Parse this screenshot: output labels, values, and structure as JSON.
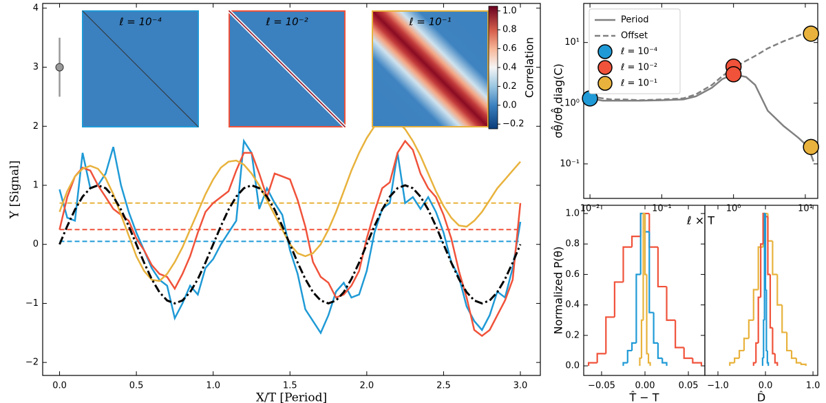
{
  "chart_data": [
    {
      "type": "line",
      "xlabel": "X/T [Period]",
      "ylabel": "Y [Signal]",
      "xlim": [
        -0.11,
        3.13
      ],
      "ylim": [
        -2.22,
        4.08
      ],
      "xticks": [
        {
          "value": 0,
          "label": "0.0"
        },
        0.5,
        {
          "value": 1,
          "label": "1.0"
        },
        1.5,
        {
          "value": 2,
          "label": "2.0"
        },
        2.5,
        {
          "value": 3,
          "label": "3.0"
        }
      ],
      "yticks": [
        {
          "value": -2,
          "label": "−2"
        },
        {
          "value": -1,
          "label": "−1"
        },
        0,
        1,
        2,
        3,
        4
      ],
      "x": [
        0,
        0.05,
        0.1,
        0.15,
        0.2,
        0.25,
        0.3,
        0.35,
        0.4,
        0.45,
        0.5,
        0.55,
        0.6,
        0.65,
        0.7,
        0.75,
        0.8,
        0.85,
        0.9,
        0.95,
        1,
        1.05,
        1.1,
        1.15,
        1.2,
        1.25,
        1.3,
        1.35,
        1.4,
        1.45,
        1.5,
        1.55,
        1.6,
        1.65,
        1.7,
        1.75,
        1.8,
        1.85,
        1.9,
        1.95,
        2,
        2.05,
        2.1,
        2.15,
        2.2,
        2.25,
        2.3,
        2.35,
        2.4,
        2.45,
        2.5,
        2.55,
        2.6,
        2.65,
        2.7,
        2.75,
        2.8,
        2.85,
        2.9,
        2.95,
        3
      ],
      "series": [
        {
          "color": "#1f9ad6",
          "style": "solid",
          "values": [
            0.93,
            0.45,
            0.4,
            1.55,
            0.95,
            1.0,
            1.2,
            1.65,
            1.0,
            0.55,
            0.2,
            -0.1,
            -0.4,
            -0.6,
            -0.7,
            -1.25,
            -1.0,
            -0.7,
            -0.85,
            -0.4,
            -0.25,
            0.0,
            0.2,
            0.4,
            1.75,
            1.55,
            0.6,
            0.95,
            0.7,
            0.5,
            -0.1,
            -0.5,
            -1.1,
            -1.3,
            -1.5,
            -1.2,
            -0.8,
            -0.65,
            -0.9,
            -0.85,
            -0.45,
            0.2,
            0.6,
            0.7,
            1.55,
            0.7,
            0.8,
            0.6,
            0.8,
            0.55,
            0.2,
            -0.3,
            -0.55,
            -1.05,
            -1.3,
            -1.45,
            -1.2,
            -0.8,
            -0.9,
            -0.4,
            0.38
          ]
        },
        {
          "color": "#f0523a",
          "style": "solid",
          "values": [
            0.25,
            0.8,
            1.15,
            1.3,
            1.25,
            1.0,
            0.8,
            0.6,
            0.5,
            0.4,
            0.1,
            -0.1,
            -0.35,
            -0.5,
            -0.55,
            -0.75,
            -0.5,
            -0.2,
            0.2,
            0.55,
            0.7,
            0.8,
            0.9,
            1.25,
            1.55,
            1.55,
            1.2,
            0.8,
            1.2,
            1.15,
            1.1,
            0.75,
            0.3,
            -0.3,
            -0.55,
            -0.65,
            -0.9,
            -0.85,
            -0.7,
            -0.45,
            0.1,
            0.55,
            0.95,
            1.05,
            1.55,
            1.75,
            1.6,
            1.2,
            0.95,
            0.8,
            0.5,
            0.1,
            -0.45,
            -0.9,
            -1.45,
            -1.55,
            -1.45,
            -1.2,
            -0.95,
            -0.6,
            0.7
          ]
        },
        {
          "color": "#e8b23c",
          "style": "solid",
          "values": [
            0.55,
            0.9,
            1.15,
            1.28,
            1.33,
            1.28,
            1.12,
            0.85,
            0.5,
            0.15,
            -0.2,
            -0.45,
            -0.6,
            -0.62,
            -0.5,
            -0.3,
            -0.05,
            0.25,
            0.55,
            0.85,
            1.1,
            1.3,
            1.4,
            1.42,
            1.35,
            1.2,
            1.0,
            0.75,
            0.5,
            0.25,
            0.0,
            -0.15,
            -0.2,
            -0.15,
            0.0,
            0.25,
            0.55,
            0.9,
            1.25,
            1.55,
            1.8,
            2.0,
            2.1,
            2.13,
            2.08,
            1.95,
            1.75,
            1.5,
            1.2,
            0.9,
            0.65,
            0.45,
            0.32,
            0.3,
            0.4,
            0.55,
            0.75,
            0.95,
            1.1,
            1.25,
            1.4
          ]
        },
        {
          "color": "#000000",
          "style": "dashdot",
          "values": [
            0,
            0.309,
            0.588,
            0.809,
            0.951,
            1,
            0.951,
            0.809,
            0.588,
            0.309,
            0,
            -0.309,
            -0.588,
            -0.809,
            -0.951,
            -1,
            -0.951,
            -0.809,
            -0.588,
            -0.309,
            0,
            0.309,
            0.588,
            0.809,
            0.951,
            1,
            0.951,
            0.809,
            0.588,
            0.309,
            0,
            -0.309,
            -0.588,
            -0.809,
            -0.951,
            -1,
            -0.951,
            -0.809,
            -0.588,
            -0.309,
            0,
            0.309,
            0.588,
            0.809,
            0.951,
            1,
            0.951,
            0.809,
            0.588,
            0.309,
            0,
            -0.309,
            -0.588,
            -0.809,
            -0.951,
            -1,
            -0.951,
            -0.809,
            -0.588,
            -0.309,
            0
          ]
        }
      ],
      "hlines": [
        {
          "value": 0.05,
          "color": "#1f9ad6"
        },
        {
          "value": 0.25,
          "color": "#f0523a"
        },
        {
          "value": 0.7,
          "color": "#e8b23c"
        }
      ],
      "errorbar": {
        "x": 0,
        "y": 3,
        "err": 0.5,
        "color": "#999999"
      },
      "insets": [
        {
          "title": "ℓ = 10⁻⁴",
          "color": "#1f9ad6"
        },
        {
          "title": "ℓ = 10⁻²",
          "color": "#f0523a"
        },
        {
          "title": "ℓ = 10⁻¹",
          "color": "#e8b23c"
        }
      ],
      "colorbar": {
        "label": "Correlation",
        "lim": [
          -0.25,
          1.05
        ],
        "ticks": [
          {
            "value": -0.2,
            "label": "−0.2"
          },
          {
            "value": 0,
            "label": "0.0"
          },
          0.2,
          0.4,
          0.6,
          0.8,
          {
            "value": 1,
            "label": "1.0"
          }
        ]
      }
    },
    {
      "type": "line",
      "xlog": true,
      "ylog": true,
      "xlabel": "ℓ × T",
      "ylabel": "σθ̂/σθ̂,diag(C)",
      "legend": "upper left",
      "xlim": [
        0.00818,
        14.9
      ],
      "ylim": [
        0.027,
        44
      ],
      "xticks": [
        {
          "value": 0.01,
          "label": "10⁻²"
        },
        {
          "value": 0.1,
          "label": "10⁻¹"
        },
        {
          "value": 1,
          "label": "10⁰"
        },
        {
          "value": 10,
          "label": "10¹"
        }
      ],
      "yticks": [
        {
          "value": 0.1,
          "label": "10⁻¹"
        },
        {
          "value": 1,
          "label": "10⁰"
        },
        {
          "value": 10,
          "label": "10¹"
        }
      ],
      "x": [
        0.01,
        0.015,
        0.02,
        0.03,
        0.05,
        0.1,
        0.2,
        0.3,
        0.5,
        0.7,
        1,
        1.5,
        2,
        3,
        5,
        8,
        11,
        13
      ],
      "series": [
        {
          "name": "Period",
          "color": "#808080",
          "style": "solid",
          "values": [
            1.2,
            1.1,
            1.1,
            1.1,
            1.1,
            1.12,
            1.15,
            1.3,
            1.8,
            2.5,
            3.0,
            2.7,
            2.0,
            0.75,
            0.42,
            0.27,
            0.19,
            0.11
          ]
        },
        {
          "name": "Offset",
          "color": "#808080",
          "style": "dashed",
          "values": [
            1.3,
            1.2,
            1.15,
            1.15,
            1.12,
            1.15,
            1.2,
            1.4,
            2.0,
            2.8,
            3.8,
            5.0,
            6.0,
            8.0,
            10.5,
            13,
            15.5,
            17
          ]
        }
      ],
      "points": [
        {
          "name": "ℓ = 10⁻⁴",
          "color": "#1f9ad6",
          "x": [
            0.01
          ],
          "y": [
            1.2
          ]
        },
        {
          "name": "ℓ = 10⁻²",
          "color": "#f0523a",
          "x": [
            1,
            1
          ],
          "y": [
            4.0,
            3.0
          ]
        },
        {
          "name": "ℓ = 10⁻¹",
          "color": "#e8b23c",
          "x": [
            12,
            12
          ],
          "y": [
            14,
            0.19
          ]
        }
      ]
    },
    {
      "type": "histogram",
      "xlabel": "T̂ − T",
      "ylabel": "Normalized P(θ)",
      "xlim": [
        -0.0706,
        0.069
      ],
      "ylim": [
        -0.063,
        1.054
      ],
      "xticks": [
        {
          "value": -0.05,
          "label": "−0.05"
        },
        {
          "value": 0,
          "label": "0.00"
        },
        0.05
      ],
      "yticks": [
        {
          "value": 0,
          "label": "0.0"
        },
        0.2,
        0.4,
        0.6,
        0.8,
        {
          "value": 1,
          "label": "1.0"
        }
      ],
      "series": [
        {
          "color": "#f0523a",
          "bins": [
            -0.065,
            -0.055,
            -0.045,
            -0.035,
            -0.025,
            -0.015,
            -0.005,
            0.005,
            0.015,
            0.025,
            0.035,
            0.045,
            0.055,
            0.065
          ],
          "counts": [
            0.02,
            0.08,
            0.32,
            0.55,
            0.78,
            0.85,
            1.0,
            0.78,
            0.52,
            0.3,
            0.12,
            0.05,
            0.02
          ]
        },
        {
          "color": "#1f9ad6",
          "bins": [
            -0.025,
            -0.02,
            -0.015,
            -0.01,
            -0.005,
            0,
            0.005,
            0.01,
            0.015,
            0.02,
            0.025
          ],
          "counts": [
            0.02,
            0.1,
            0.15,
            0.6,
            1.0,
            0.88,
            0.35,
            0.15,
            0.05,
            0.02
          ]
        },
        {
          "color": "#e8b23c",
          "bins": [
            -0.006,
            -0.004,
            -0.002,
            0,
            0.002,
            0.004,
            0.006
          ],
          "counts": [
            0.05,
            0.3,
            1.0,
            0.6,
            0.08,
            0.02
          ]
        }
      ]
    },
    {
      "type": "histogram",
      "xlabel": "D̂",
      "xlim": [
        -1.275,
        1.1
      ],
      "ylim": [
        -0.063,
        1.054
      ],
      "xticks": [
        {
          "value": -1,
          "label": "−1.0"
        },
        {
          "value": 0,
          "label": "0.0"
        },
        {
          "value": 1,
          "label": "1.0"
        }
      ],
      "series": [
        {
          "color": "#e8b23c",
          "bins": [
            -0.75,
            -0.65,
            -0.55,
            -0.45,
            -0.35,
            -0.25,
            -0.15,
            -0.05,
            0.05,
            0.15,
            0.25,
            0.35,
            0.45,
            0.55,
            0.65,
            0.75,
            0.85
          ],
          "counts": [
            0.02,
            0.05,
            0.1,
            0.18,
            0.3,
            0.5,
            0.78,
            1.0,
            0.82,
            0.6,
            0.4,
            0.22,
            0.1,
            0.05,
            0.02,
            0.01
          ]
        },
        {
          "color": "#f0523a",
          "bins": [
            -0.25,
            -0.2,
            -0.15,
            -0.1,
            -0.05,
            0,
            0.05,
            0.1,
            0.15,
            0.2,
            0.25
          ],
          "counts": [
            0.02,
            0.15,
            0.45,
            0.8,
            1.0,
            0.98,
            0.6,
            0.25,
            0.08,
            0.02
          ]
        },
        {
          "color": "#1f9ad6",
          "bins": [
            -0.06,
            -0.04,
            -0.02,
            0,
            0.02,
            0.04,
            0.06
          ],
          "counts": [
            0.05,
            0.3,
            1.0,
            0.5,
            0.1,
            0.02
          ]
        }
      ]
    }
  ]
}
